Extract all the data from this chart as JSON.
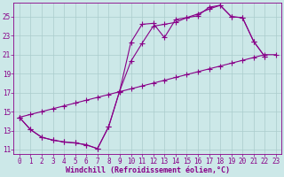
{
  "xlabel": "Windchill (Refroidissement éolien,°C)",
  "bg_color": "#cce8e8",
  "grid_color": "#aacccc",
  "line_color": "#880088",
  "xlim": [
    -0.5,
    23.5
  ],
  "ylim": [
    10.5,
    26.5
  ],
  "xticks": [
    0,
    1,
    2,
    3,
    4,
    5,
    6,
    7,
    8,
    9,
    10,
    11,
    12,
    13,
    14,
    15,
    16,
    17,
    18,
    19,
    20,
    21,
    22,
    23
  ],
  "yticks": [
    11,
    13,
    15,
    17,
    19,
    21,
    23,
    25
  ],
  "line1_x": [
    0,
    1,
    2,
    3,
    4,
    5,
    6,
    7,
    8,
    9,
    10,
    11,
    12,
    13,
    14,
    15,
    16,
    17,
    18,
    19,
    20,
    21,
    22
  ],
  "line1_y": [
    14.4,
    13.1,
    12.3,
    12.0,
    11.8,
    11.7,
    11.5,
    11.1,
    13.4,
    17.2,
    22.3,
    24.2,
    24.3,
    22.8,
    24.7,
    24.9,
    25.1,
    26.0,
    26.2,
    25.0,
    24.9,
    22.4,
    20.8
  ],
  "line2_x": [
    0,
    1,
    2,
    3,
    4,
    5,
    6,
    7,
    8,
    9,
    10,
    11,
    12,
    13,
    14,
    15,
    16,
    17,
    18,
    19,
    20,
    21,
    22
  ],
  "line2_y": [
    14.4,
    13.1,
    12.3,
    12.0,
    11.8,
    11.7,
    11.5,
    11.1,
    13.4,
    17.2,
    20.3,
    22.2,
    24.0,
    24.2,
    24.4,
    24.9,
    25.3,
    25.8,
    26.2,
    25.0,
    24.9,
    22.4,
    20.8
  ],
  "line3_x": [
    0,
    1,
    2,
    3,
    4,
    5,
    6,
    7,
    8,
    9,
    10,
    11,
    12,
    13,
    14,
    15,
    16,
    17,
    18,
    19,
    20,
    21,
    22,
    23
  ],
  "line3_y": [
    14.4,
    14.7,
    15.0,
    15.3,
    15.6,
    15.9,
    16.2,
    16.5,
    16.8,
    17.1,
    17.4,
    17.7,
    18.0,
    18.3,
    18.6,
    18.9,
    19.2,
    19.5,
    19.8,
    20.1,
    20.4,
    20.7,
    21.0,
    21.0
  ],
  "fontsize_label": 6,
  "fontsize_tick": 5.5,
  "marker_size": 2.5
}
